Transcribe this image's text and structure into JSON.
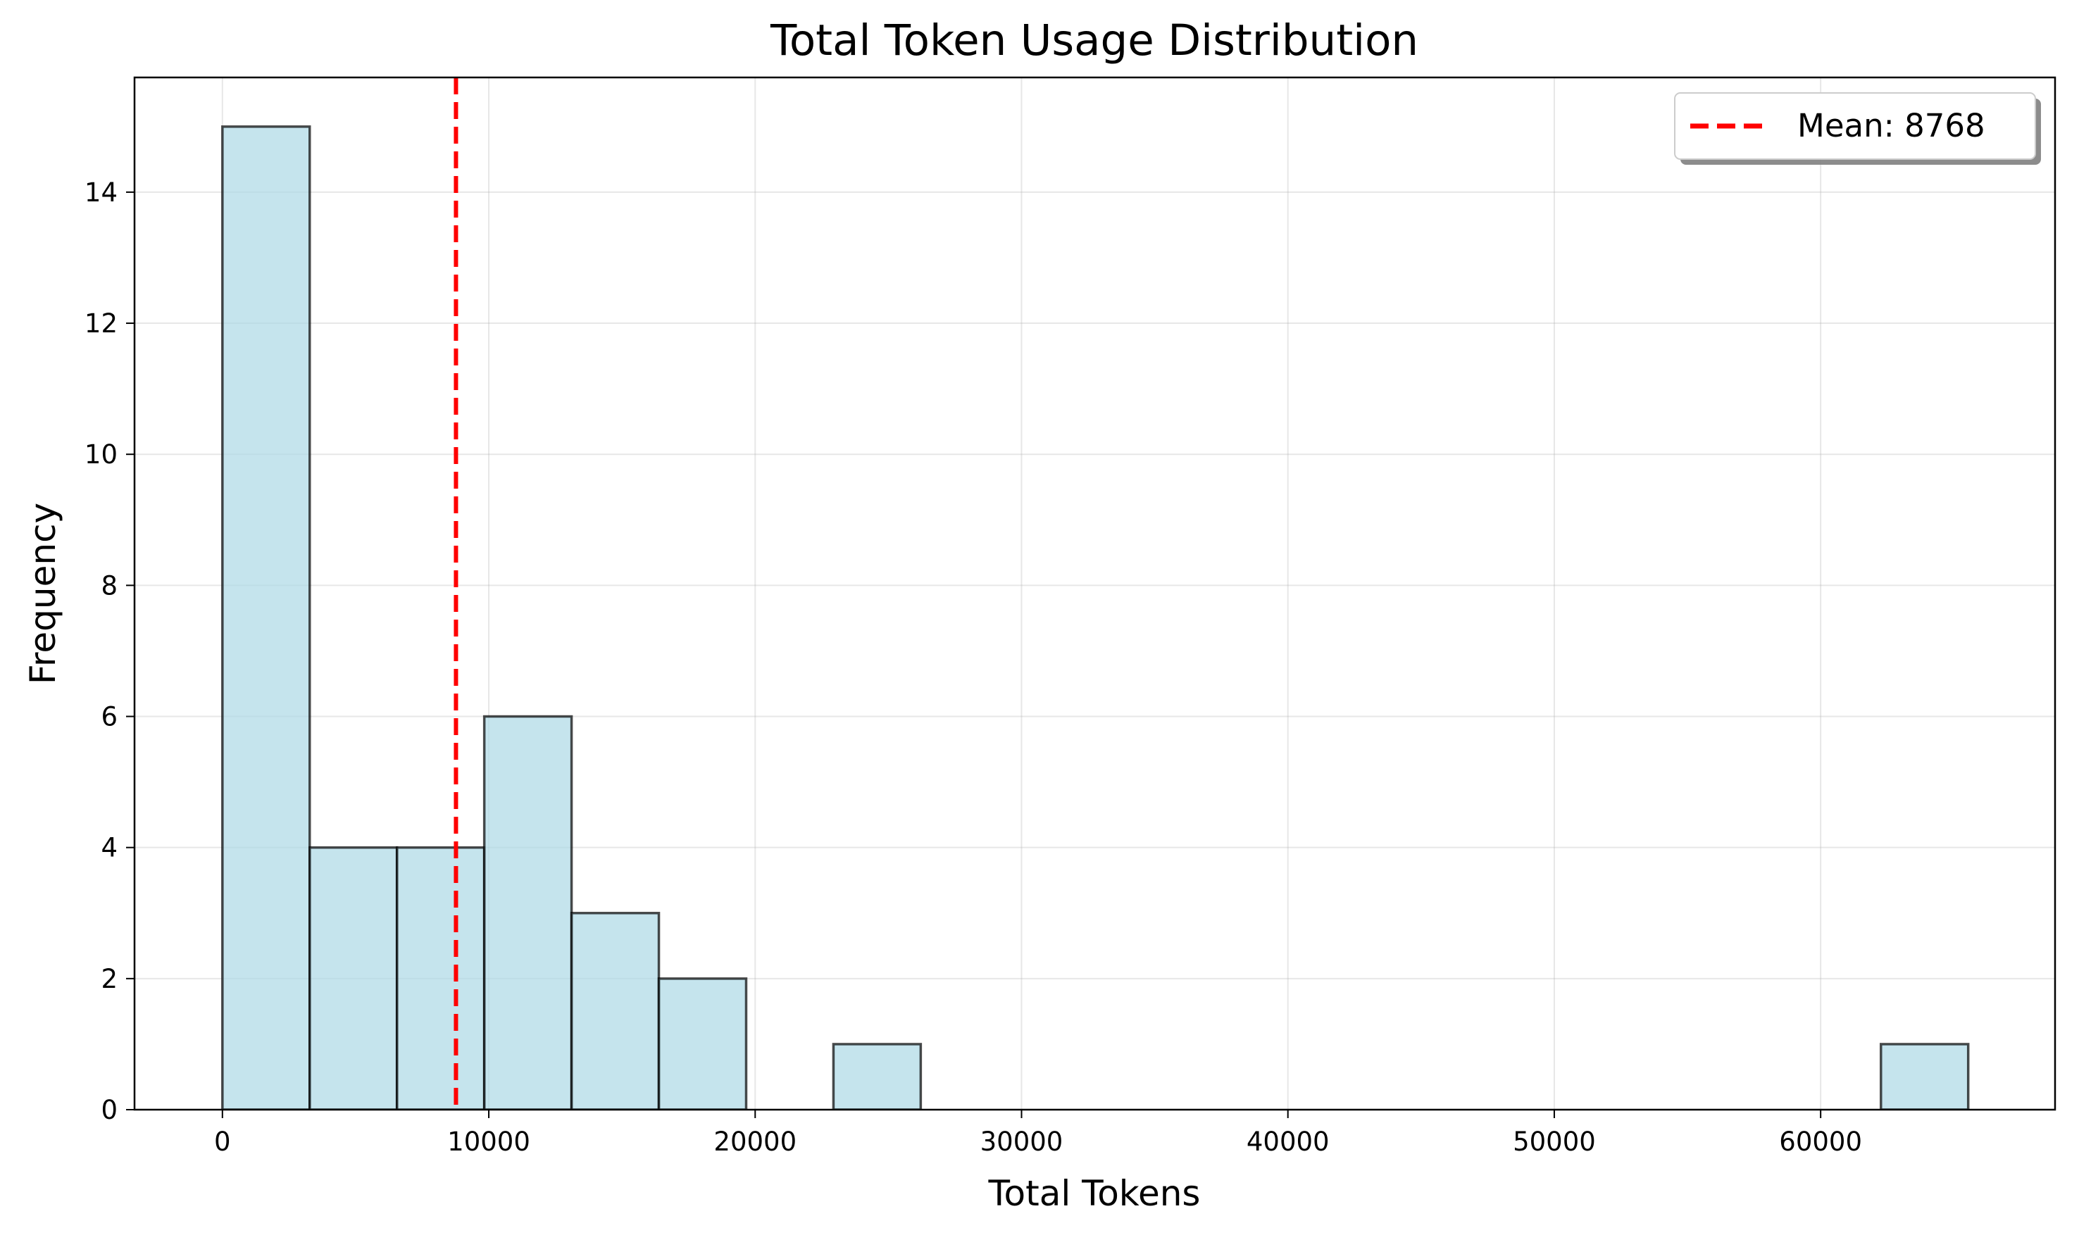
{
  "chart_data": {
    "type": "bar",
    "subtype": "histogram",
    "title": "Total Token Usage Distribution",
    "xlabel": "Total Tokens",
    "ylabel": "Frequency",
    "xlim": [
      -3300,
      68800
    ],
    "ylim": [
      0,
      15.75
    ],
    "xticks": [
      0,
      10000,
      20000,
      30000,
      40000,
      50000,
      60000
    ],
    "xtick_labels": [
      "0",
      "10000",
      "20000",
      "30000",
      "40000",
      "50000",
      "60000"
    ],
    "yticks": [
      0,
      2,
      4,
      6,
      8,
      10,
      12,
      14
    ],
    "ytick_labels": [
      "0",
      "2",
      "4",
      "6",
      "8",
      "10",
      "12",
      "14"
    ],
    "grid": true,
    "bin_edges": [
      0,
      3277,
      6554,
      9831,
      13108,
      16385,
      19662,
      22939,
      26216,
      29493,
      32770,
      36047,
      39324,
      42601,
      45878,
      49155,
      52432,
      55709,
      58986,
      62263,
      65540
    ],
    "values": [
      15,
      4,
      4,
      6,
      3,
      2,
      0,
      1,
      0,
      0,
      0,
      0,
      0,
      0,
      0,
      0,
      0,
      0,
      0,
      1
    ],
    "bar_color": "#add8e6",
    "edge_color": "#000000",
    "mean": 8768,
    "mean_color": "#ff0000",
    "legend": {
      "entries": [
        "Mean: 8768"
      ],
      "position": "top-right"
    }
  }
}
